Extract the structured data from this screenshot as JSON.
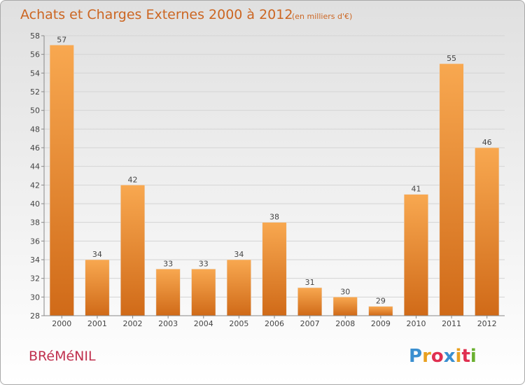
{
  "title": "Achats et Charges Externes 2000 à 2012",
  "subtitle": "(en milliers d'€)",
  "commune": "BRéMéNIL",
  "logo": {
    "text": "Proxiti",
    "letters": [
      "P",
      "r",
      "o",
      "x",
      "i",
      "t",
      "i"
    ],
    "colors": [
      "#3a8fd0",
      "#e8a020",
      "#e03050",
      "#3a8fd0",
      "#e8a020",
      "#e03050",
      "#6ab030"
    ]
  },
  "colors": {
    "bar_top": "#f8a850",
    "bar_bottom": "#d06a18",
    "title": "#cc6622",
    "commune": "#c0304e"
  },
  "chart_data": {
    "type": "bar",
    "categories": [
      "2000",
      "2001",
      "2002",
      "2003",
      "2004",
      "2005",
      "2006",
      "2007",
      "2008",
      "2009",
      "2010",
      "2011",
      "2012"
    ],
    "values": [
      57,
      34,
      42,
      33,
      33,
      34,
      38,
      31,
      30,
      29,
      41,
      55,
      46
    ],
    "title": "Achats et Charges Externes 2000 à 2012",
    "subtitle": "(en milliers d'€)",
    "xlabel": "",
    "ylabel": "",
    "ylim": [
      28,
      58
    ],
    "yticks": [
      28,
      30,
      32,
      34,
      36,
      38,
      40,
      42,
      44,
      46,
      48,
      50,
      52,
      54,
      56,
      58
    ],
    "grid": true
  }
}
